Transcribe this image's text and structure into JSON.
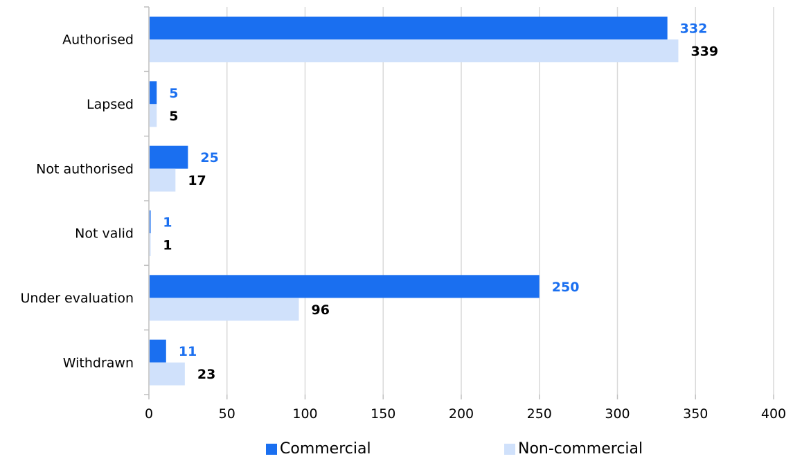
{
  "chart_data": {
    "type": "bar",
    "orientation": "horizontal",
    "categories": [
      "Authorised",
      "Lapsed",
      "Not authorised",
      "Not valid",
      "Under evaluation",
      "Withdrawn"
    ],
    "series": [
      {
        "name": "Commercial",
        "values": [
          332,
          5,
          25,
          1,
          250,
          11
        ],
        "color": "#1a6ff0",
        "label_color": "#1a6ff0"
      },
      {
        "name": "Non-commercial",
        "values": [
          339,
          5,
          17,
          1,
          96,
          23
        ],
        "color": "#d0e1fb",
        "label_color": "#000000"
      }
    ],
    "xlim": [
      0,
      400
    ],
    "x_ticks": [
      "0",
      "50",
      "100",
      "150",
      "200",
      "250",
      "300",
      "350",
      "400"
    ],
    "grid": "vertical",
    "legend_position": "bottom",
    "data_labels": true
  }
}
